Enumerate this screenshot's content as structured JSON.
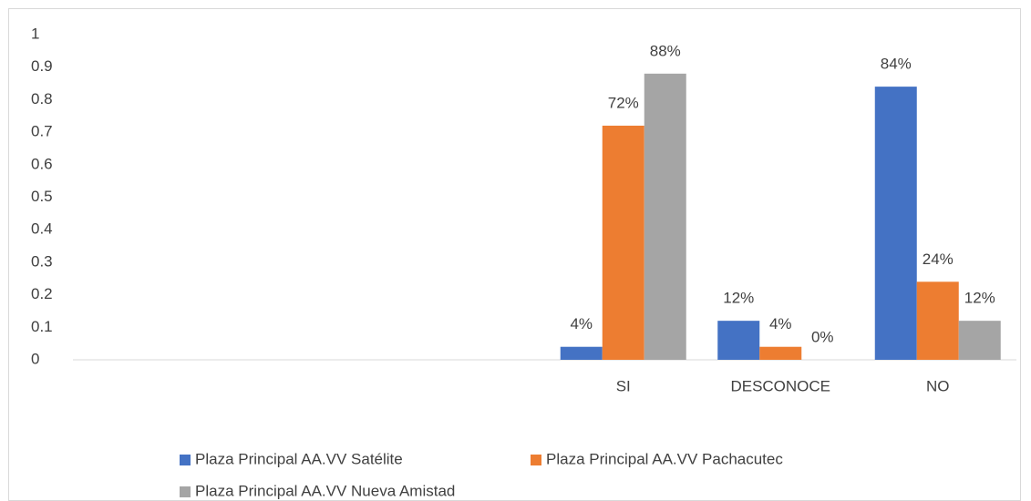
{
  "chart_data": {
    "type": "bar",
    "categories": [
      null,
      null,
      null,
      "SI",
      "DESCONOCE",
      "NO"
    ],
    "series": [
      {
        "name": "Plaza Principal AA.VV Satélite",
        "color": "#4472c4",
        "values": [
          null,
          null,
          null,
          0.04,
          0.12,
          0.84
        ],
        "value_labels": [
          null,
          null,
          null,
          "4%",
          "12%",
          "84%"
        ]
      },
      {
        "name": "Plaza Principal AA.VV Pachacutec",
        "color": "#ed7d31",
        "values": [
          null,
          null,
          null,
          0.72,
          0.04,
          0.24
        ],
        "value_labels": [
          null,
          null,
          null,
          "72%",
          "4%",
          "24%"
        ]
      },
      {
        "name": "Plaza Principal AA.VV Nueva Amistad",
        "color": "#a5a5a5",
        "values": [
          null,
          null,
          null,
          0.88,
          0,
          0.12
        ],
        "value_labels": [
          null,
          null,
          null,
          "88%",
          "0%",
          "12%"
        ]
      }
    ],
    "ylim": [
      0,
      1
    ],
    "yticks": [
      0,
      0.1,
      0.2,
      0.3,
      0.4,
      0.5,
      0.6,
      0.7,
      0.8,
      0.9,
      1
    ],
    "grid": false
  }
}
